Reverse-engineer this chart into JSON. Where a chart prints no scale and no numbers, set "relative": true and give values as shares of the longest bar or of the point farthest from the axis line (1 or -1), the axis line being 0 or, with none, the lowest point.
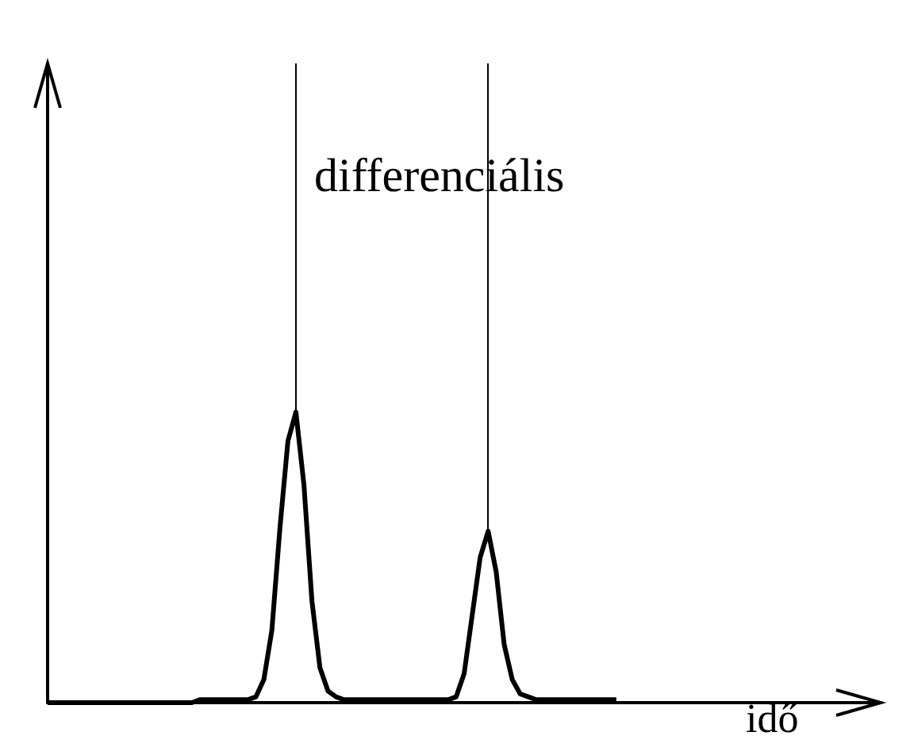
{
  "chart_data": {
    "type": "line",
    "relative": true,
    "xlabel": "idő",
    "annotations": [
      "differenciális"
    ],
    "categories": [
      null,
      null,
      null,
      null,
      null,
      null,
      null,
      null,
      null,
      null,
      null,
      null,
      null,
      null,
      null,
      null,
      null,
      null,
      null,
      null,
      null,
      null,
      null,
      null,
      null,
      null,
      null,
      null,
      null,
      null,
      null,
      null,
      null,
      null,
      null,
      null,
      null,
      null,
      null,
      null,
      null,
      null,
      null,
      null,
      null,
      null,
      null,
      null,
      null,
      null,
      null,
      null,
      null,
      null,
      null,
      null,
      null,
      null,
      null,
      null,
      null,
      null,
      null,
      null,
      null,
      null,
      null,
      null,
      null,
      null,
      null,
      null,
      null,
      null,
      null,
      null,
      null,
      null,
      null,
      null,
      null,
      null,
      null,
      null,
      null,
      null,
      null,
      null,
      null,
      null,
      null,
      null,
      null,
      null,
      null,
      null,
      null,
      null,
      null,
      null,
      null,
      null,
      null,
      null,
      null
    ],
    "values": [
      0,
      0,
      0,
      0,
      0,
      0,
      0,
      0,
      0,
      0,
      0,
      0,
      0,
      0,
      0,
      0,
      0,
      0,
      0,
      0.01,
      0.01,
      0.01,
      0.01,
      0.01,
      0.01,
      0.01,
      0.02,
      0.08,
      0.25,
      0.6,
      0.9,
      1,
      0.75,
      0.35,
      0.12,
      0.04,
      0.02,
      0.01,
      0.01,
      0.01,
      0.01,
      0.01,
      0.01,
      0.01,
      0.01,
      0.01,
      0.01,
      0.01,
      0.01,
      0.01,
      0.01,
      0.02,
      0.1,
      0.3,
      0.5,
      0.59,
      0.45,
      0.2,
      0.08,
      0.03,
      0.02,
      0.01,
      0.01,
      0.01,
      0.01,
      0.01,
      0.01,
      0.01,
      0.01,
      0.01,
      0.01,
      0.01,
      null,
      null,
      null,
      null,
      null,
      null,
      null,
      null,
      null,
      null,
      null,
      null,
      null,
      null,
      null,
      null,
      null,
      null,
      null,
      null,
      null,
      null,
      null,
      null,
      null,
      null,
      null,
      null,
      null,
      null,
      null,
      null,
      null
    ],
    "color": "#000000",
    "line_style": "solid",
    "grid": false
  }
}
